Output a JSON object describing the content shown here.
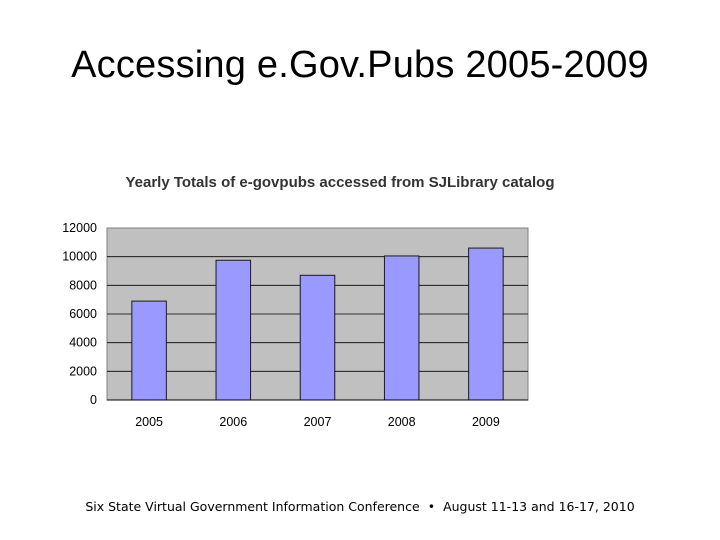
{
  "slide": {
    "title": "Accessing e.Gov.Pubs 2005-2009",
    "footer_left": "Six State Virtual Government Information Conference",
    "footer_separator": "•",
    "footer_right": "August 11-13 and 16-17, 2010"
  },
  "chart_data": {
    "type": "bar",
    "title": "Yearly Totals of e-govpubs accessed from SJLibrary catalog",
    "xlabel": "",
    "ylabel": "",
    "categories": [
      "2005",
      "2006",
      "2007",
      "2008",
      "2009"
    ],
    "values": [
      6900,
      9750,
      8700,
      10050,
      10600
    ],
    "ylim": [
      0,
      12000
    ],
    "yticks": [
      0,
      2000,
      4000,
      6000,
      8000,
      10000,
      12000
    ],
    "grid": true,
    "legend": "none",
    "colors": {
      "bar_fill": "#9999ff",
      "bar_stroke": "#1a1a1a",
      "plot_background": "#c0c0c0",
      "gridline": "#000000"
    }
  }
}
